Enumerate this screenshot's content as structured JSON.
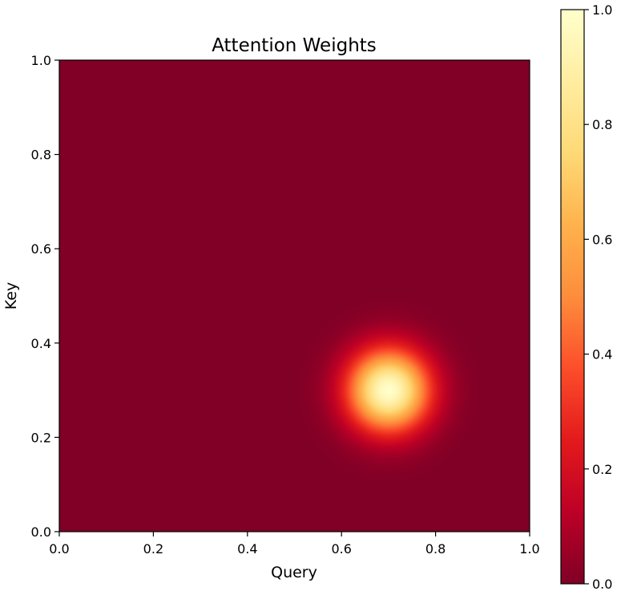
{
  "chart_data": {
    "type": "heatmap",
    "title": "Attention Weights",
    "xlabel": "Query",
    "ylabel": "Key",
    "xlim": [
      0.0,
      1.0
    ],
    "ylim": [
      0.0,
      1.0
    ],
    "x_ticks": [
      "0.0",
      "0.2",
      "0.4",
      "0.6",
      "0.8",
      "1.0"
    ],
    "y_ticks": [
      "0.0",
      "0.2",
      "0.4",
      "0.6",
      "0.8",
      "1.0"
    ],
    "grid": false,
    "colormap": "YlOrRd_r",
    "colormap_stops": [
      "#800026",
      "#bd0026",
      "#e31a1c",
      "#fc4e2a",
      "#fd8d3c",
      "#feb24c",
      "#fed976",
      "#ffeda0",
      "#ffffcc"
    ],
    "colorbar": {
      "range": [
        0.0,
        1.0
      ],
      "ticks": [
        "0.0",
        "0.2",
        "0.4",
        "0.6",
        "0.8",
        "1.0"
      ]
    },
    "grid_resolution": 100,
    "field": {
      "form": "gaussian",
      "peak_value": 1.0,
      "center_query": 0.7,
      "center_key": 0.3,
      "sigma": 0.06
    }
  }
}
